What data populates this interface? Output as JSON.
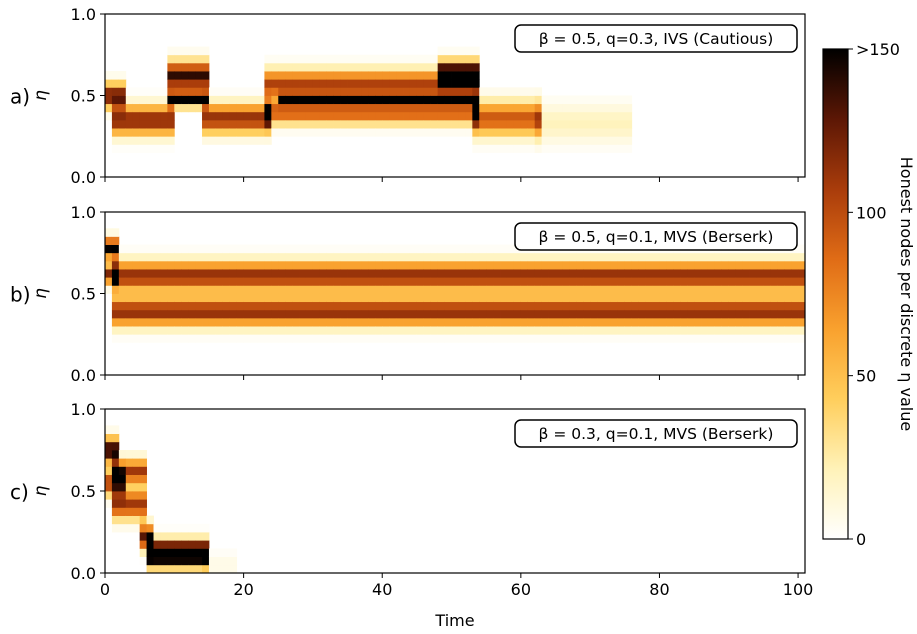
{
  "figure": {
    "colorbar": {
      "label": "Honest nodes per discrete η value",
      "ticks": [
        "0",
        "50",
        "100",
        ">150"
      ],
      "tick_values": [
        0,
        50,
        100,
        150
      ],
      "range": [
        0,
        150
      ]
    },
    "xlabel": "Time",
    "x_ticks": [
      "0",
      "20",
      "40",
      "60",
      "80",
      "100"
    ],
    "y_ticks": [
      "0.0",
      "0.5",
      "1.0"
    ],
    "colormap": [
      "#ffffff",
      "#fff2b8",
      "#ffce5c",
      "#f9a12e",
      "#e06c16",
      "#a93c0b",
      "#5c1705",
      "#000000"
    ]
  },
  "chart_data": [
    {
      "type": "heatmap",
      "panel_label": "a)",
      "ylabel": "η",
      "annotation": "β = 0.5, q=0.3, IVS (Cautious)",
      "xlim": [
        0,
        101
      ],
      "ylim": [
        0,
        1
      ],
      "x_step": 1,
      "eta_step": 0.05,
      "bands": [
        {
          "t": [
            0,
            2
          ],
          "eta": 0.5,
          "width": 0.05,
          "peak": 130
        },
        {
          "t": [
            1,
            9
          ],
          "eta": 0.35,
          "width": 0.06,
          "peak": 120
        },
        {
          "t": [
            9,
            14
          ],
          "eta": 0.62,
          "width": 0.06,
          "peak": 140
        },
        {
          "t": [
            9,
            14
          ],
          "eta": 0.48,
          "width": 0.03,
          "peak": 160
        },
        {
          "t": [
            14,
            23
          ],
          "eta": 0.36,
          "width": 0.06,
          "peak": 115
        },
        {
          "t": [
            23,
            53
          ],
          "eta": 0.57,
          "width": 0.06,
          "peak": 105
        },
        {
          "t": [
            23,
            53
          ],
          "eta": 0.4,
          "width": 0.05,
          "peak": 95
        },
        {
          "t": [
            25,
            53
          ],
          "eta": 0.48,
          "width": 0.02,
          "peak": 150
        },
        {
          "t": [
            48,
            53
          ],
          "eta": 0.64,
          "width": 0.05,
          "peak": 140
        },
        {
          "t": [
            53,
            62
          ],
          "eta": 0.36,
          "width": 0.07,
          "peak": 95
        },
        {
          "t": [
            62,
            75
          ],
          "eta": 0.33,
          "width": 0.08,
          "peak": 20
        }
      ]
    },
    {
      "type": "heatmap",
      "panel_label": "b)",
      "ylabel": "η",
      "annotation": "β = 0.5, q=0.1, MVS (Berserk)",
      "xlim": [
        0,
        101
      ],
      "ylim": [
        0,
        1
      ],
      "x_step": 1,
      "eta_step": 0.05,
      "bands": [
        {
          "t": [
            0,
            1
          ],
          "eta": 0.78,
          "width": 0.04,
          "peak": 150
        },
        {
          "t": [
            0,
            1
          ],
          "eta": 0.62,
          "width": 0.04,
          "peak": 120
        },
        {
          "t": [
            1,
            100
          ],
          "eta": 0.61,
          "width": 0.06,
          "peak": 115
        },
        {
          "t": [
            1,
            100
          ],
          "eta": 0.39,
          "width": 0.06,
          "peak": 115
        }
      ]
    },
    {
      "type": "heatmap",
      "panel_label": "c)",
      "ylabel": "η",
      "annotation": "β = 0.3, q=0.1, MVS (Berserk)",
      "xlim": [
        0,
        101
      ],
      "ylim": [
        0,
        1
      ],
      "x_step": 1,
      "eta_step": 0.05,
      "bands": [
        {
          "t": [
            0,
            1
          ],
          "eta": 0.75,
          "width": 0.05,
          "peak": 150
        },
        {
          "t": [
            0,
            2
          ],
          "eta": 0.55,
          "width": 0.05,
          "peak": 110
        },
        {
          "t": [
            1,
            5
          ],
          "eta": 0.62,
          "width": 0.05,
          "peak": 110
        },
        {
          "t": [
            1,
            5
          ],
          "eta": 0.42,
          "width": 0.06,
          "peak": 110
        },
        {
          "t": [
            5,
            6
          ],
          "eta": 0.22,
          "width": 0.05,
          "peak": 130
        },
        {
          "t": [
            6,
            14
          ],
          "eta": 0.12,
          "width": 0.05,
          "peak": 220
        },
        {
          "t": [
            14,
            18
          ],
          "eta": 0.05,
          "width": 0.05,
          "peak": 8
        }
      ]
    }
  ]
}
